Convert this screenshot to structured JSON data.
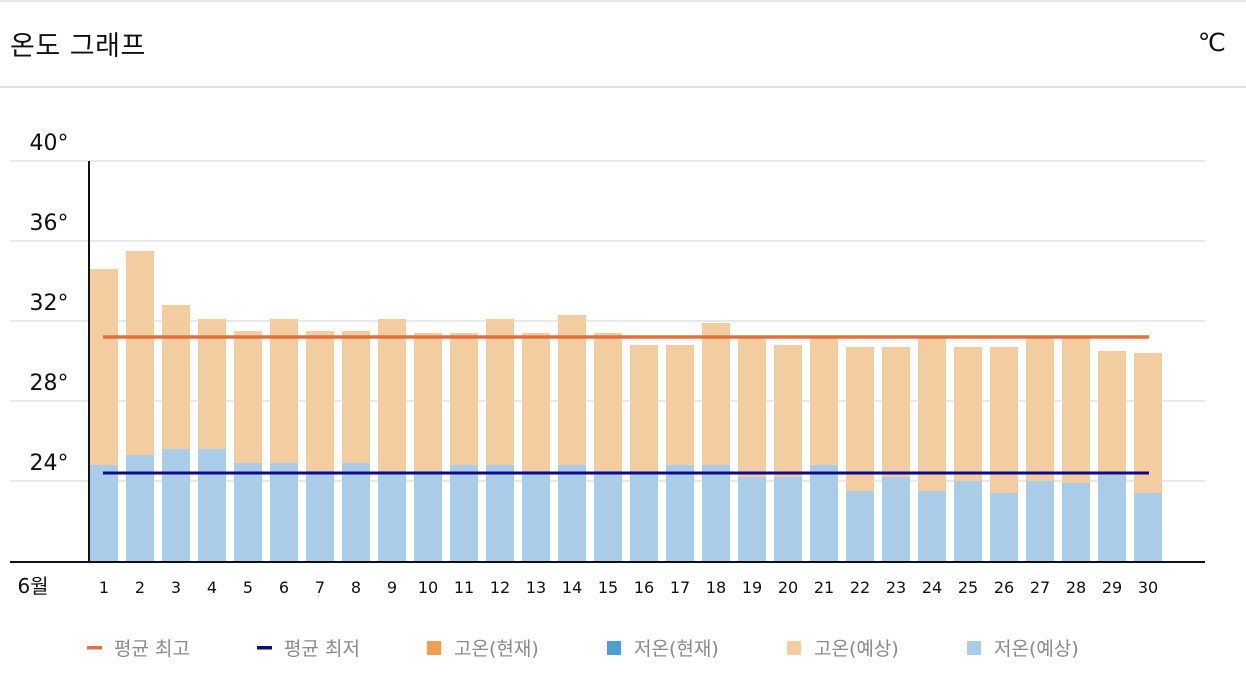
{
  "header": {
    "title": "온도 그래프",
    "unit": "℃"
  },
  "chart_data": {
    "type": "bar",
    "title": "온도 그래프",
    "month_label": "6월",
    "categories": [
      "1",
      "2",
      "3",
      "4",
      "5",
      "6",
      "7",
      "8",
      "9",
      "10",
      "11",
      "12",
      "13",
      "14",
      "15",
      "16",
      "17",
      "18",
      "19",
      "20",
      "21",
      "22",
      "23",
      "24",
      "25",
      "26",
      "27",
      "28",
      "29",
      "30"
    ],
    "y_ticks": [
      "24°",
      "28°",
      "32°",
      "36°",
      "40°"
    ],
    "y_tick_values": [
      24,
      28,
      32,
      36,
      40
    ],
    "ylim": [
      20,
      40
    ],
    "grid": true,
    "series": [
      {
        "name": "고온(예상)",
        "values": [
          34.6,
          35.5,
          32.8,
          32.1,
          31.5,
          32.1,
          31.5,
          31.5,
          32.1,
          31.4,
          31.4,
          32.1,
          31.4,
          32.3,
          31.4,
          30.8,
          30.8,
          31.9,
          31.2,
          30.8,
          31.2,
          30.7,
          30.7,
          31.2,
          30.7,
          30.7,
          31.2,
          31.2,
          30.5,
          30.4
        ]
      },
      {
        "name": "저온(예상)",
        "values": [
          24.8,
          25.3,
          25.6,
          25.6,
          24.9,
          24.9,
          24.5,
          24.9,
          24.5,
          24.5,
          24.8,
          24.8,
          24.5,
          24.8,
          24.5,
          24.5,
          24.8,
          24.8,
          24.2,
          24.2,
          24.8,
          23.5,
          24.2,
          23.5,
          24.0,
          23.4,
          24.0,
          23.9,
          24.3,
          23.4
        ]
      }
    ],
    "avg_high": 31.2,
    "avg_low": 24.4,
    "colors": {
      "high_forecast": "#f3cca0",
      "low_forecast": "#a9cde9",
      "high_current": "#f0a050",
      "low_current": "#4d9fd2",
      "avg_high": "#e2703a",
      "avg_low": "#0c0a8a",
      "grid": "#e2e2e2",
      "axis": "#111111"
    },
    "legend": {
      "placement": "bottom",
      "items": [
        {
          "label": "평균 최고",
          "marker": "line",
          "color": "#e2703a"
        },
        {
          "label": "평균 최저",
          "marker": "line",
          "color": "#0c0a8a"
        },
        {
          "label": "고온(현재)",
          "marker": "square",
          "color": "#f0a050"
        },
        {
          "label": "저온(현재)",
          "marker": "square",
          "color": "#4d9fd2"
        },
        {
          "label": "고온(예상)",
          "marker": "square",
          "color": "#f3cca0"
        },
        {
          "label": "저온(예상)",
          "marker": "square",
          "color": "#a9cde9"
        }
      ]
    }
  }
}
